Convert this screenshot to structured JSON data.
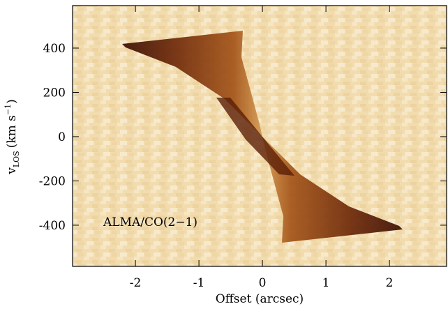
{
  "chart_data": {
    "type": "heatmap",
    "annotation": "ALMA/CO(2−1)",
    "x_label": "Offset (arcsec)",
    "y_label": {
      "main": "v",
      "subscript": "LOS",
      "unit": "(km s",
      "superscript": "−1",
      "close": ")"
    },
    "xlim": [
      -2.99,
      2.9
    ],
    "xticks": [
      -2,
      -1,
      0,
      1,
      2
    ],
    "ylim": [
      -586,
      592
    ],
    "yticks": [
      -400,
      -200,
      0,
      200,
      400
    ]
  }
}
